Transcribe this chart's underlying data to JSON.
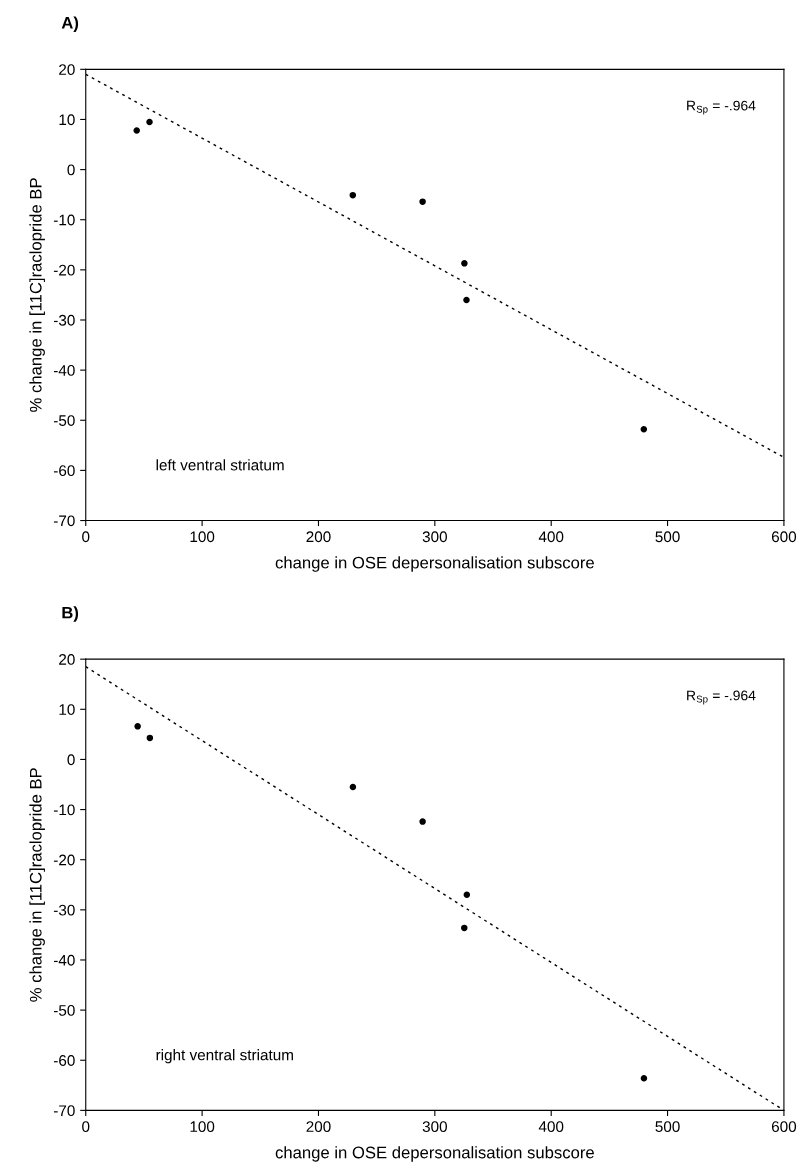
{
  "chart_data": [
    {
      "type": "scatter",
      "title": "A)",
      "xlabel": "change in OSE depersonalisation subscore",
      "ylabel": "% change in [11C]raclopride BP",
      "annotations": [
        "R$_{Sp}$ = -.964",
        "left ventral striatum"
      ],
      "series": [
        {
          "color": "#000000",
          "marker": "circle",
          "x": [
            43.8,
            54.8,
            229.5,
            289.5,
            325.4,
            327.2,
            479.6
          ],
          "values": [
            7.8,
            9.5,
            -5.1,
            -6.4,
            -18.7,
            -26,
            -51.8
          ]
        },
        {
          "type": "line",
          "color": "#000000",
          "marker": "none",
          "line_style": "dotted",
          "x": [
            0,
            600
          ],
          "values": [
            19,
            -57.4
          ]
        }
      ],
      "xlim": [
        0,
        600
      ],
      "xticks": [
        0,
        100,
        200,
        300,
        400,
        500,
        600
      ],
      "ylim": [
        -70,
        20
      ],
      "yticks": [
        -70,
        -60,
        -50,
        -40,
        -30,
        -20,
        -10,
        0,
        10,
        20
      ],
      "grid": false,
      "legend": false
    },
    {
      "type": "scatter",
      "title": "B)",
      "xlabel": "change in OSE depersonalisation subscore",
      "ylabel": "% change in [11C]raclopride BP",
      "annotations": [
        "R$_{Sp}$ = -.964",
        "right ventral striatum"
      ],
      "series": [
        {
          "color": "#000000",
          "marker": "circle",
          "x": [
            44.6,
            55.1,
            229.6,
            289.5,
            327.5,
            325.3,
            479.7
          ],
          "values": [
            6.6,
            4.3,
            -5.5,
            -12.4,
            -27,
            -33.6,
            -63.6
          ]
        },
        {
          "type": "line",
          "color": "#000000",
          "marker": "none",
          "line_style": "dotted",
          "x": [
            0,
            600
          ],
          "values": [
            18.5,
            -70
          ]
        }
      ],
      "xlim": [
        0,
        600
      ],
      "xticks": [
        0,
        100,
        200,
        300,
        400,
        500,
        600
      ],
      "ylim": [
        -70,
        20
      ],
      "yticks": [
        -70,
        -60,
        -50,
        -40,
        -30,
        -20,
        -10,
        0,
        10,
        20
      ],
      "grid": false,
      "legend": false
    }
  ]
}
